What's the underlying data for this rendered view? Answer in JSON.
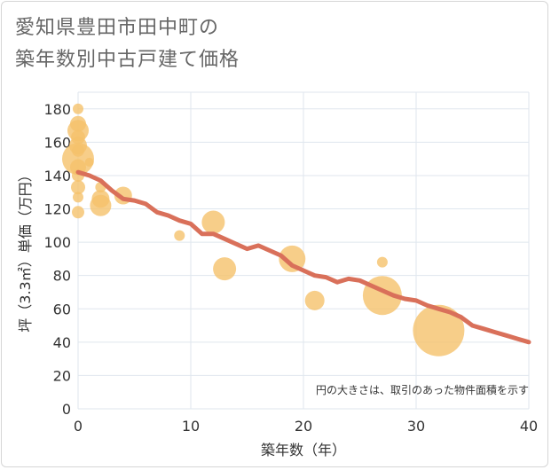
{
  "title": {
    "line1": "愛知県豊田市田中町の",
    "line2": "築年数別中古戸建て価格"
  },
  "chart_data": {
    "type": "scatter",
    "title": "愛知県豊田市田中町の築年数別中古戸建て価格",
    "xlabel": "築年数（年）",
    "ylabel": "坪（3.3㎡）単価（万円）",
    "xlim": [
      0,
      40
    ],
    "ylim": [
      0,
      190
    ],
    "xticks": [
      0,
      10,
      20,
      30,
      40
    ],
    "yticks": [
      0,
      20,
      40,
      60,
      80,
      100,
      120,
      140,
      160,
      180
    ],
    "grid": true,
    "annotation": "円の大きさは、取引のあった物件面積を示す",
    "bubble_color": "#f5c26b",
    "trend_color": "#d9705a",
    "points": [
      {
        "x": 0,
        "y": 180,
        "size": 6
      },
      {
        "x": 0,
        "y": 171,
        "size": 9
      },
      {
        "x": 0,
        "y": 167,
        "size": 12
      },
      {
        "x": 0,
        "y": 163,
        "size": 8
      },
      {
        "x": 0,
        "y": 158,
        "size": 10
      },
      {
        "x": 0,
        "y": 155,
        "size": 7
      },
      {
        "x": 0,
        "y": 150,
        "size": 18
      },
      {
        "x": 0,
        "y": 145,
        "size": 9
      },
      {
        "x": 0,
        "y": 140,
        "size": 7
      },
      {
        "x": 0,
        "y": 133,
        "size": 8
      },
      {
        "x": 0,
        "y": 127,
        "size": 6
      },
      {
        "x": 0,
        "y": 118,
        "size": 7
      },
      {
        "x": 1,
        "y": 148,
        "size": 5
      },
      {
        "x": 2,
        "y": 133,
        "size": 6
      },
      {
        "x": 2,
        "y": 126,
        "size": 10
      },
      {
        "x": 2,
        "y": 122,
        "size": 12
      },
      {
        "x": 4,
        "y": 128,
        "size": 10
      },
      {
        "x": 9,
        "y": 104,
        "size": 6
      },
      {
        "x": 12,
        "y": 112,
        "size": 13
      },
      {
        "x": 13,
        "y": 84,
        "size": 13
      },
      {
        "x": 19,
        "y": 90,
        "size": 15
      },
      {
        "x": 21,
        "y": 65,
        "size": 11
      },
      {
        "x": 27,
        "y": 88,
        "size": 6
      },
      {
        "x": 27,
        "y": 68,
        "size": 22
      },
      {
        "x": 32,
        "y": 47,
        "size": 29
      }
    ],
    "trend": {
      "x": [
        0,
        1,
        2,
        3,
        4,
        5,
        6,
        7,
        8,
        9,
        10,
        11,
        12,
        13,
        14,
        15,
        16,
        17,
        18,
        19,
        20,
        21,
        22,
        23,
        24,
        25,
        26,
        27,
        28,
        29,
        30,
        31,
        32,
        33,
        34,
        35,
        36,
        37,
        38,
        39,
        40
      ],
      "y": [
        142,
        140,
        137,
        131,
        126,
        125,
        123,
        118,
        116,
        113,
        111,
        105,
        105,
        102,
        99,
        96,
        98,
        95,
        92,
        86,
        83,
        80,
        79,
        76,
        78,
        77,
        74,
        71,
        68,
        66,
        65,
        62,
        60,
        58,
        55,
        50,
        48,
        46,
        44,
        42,
        40
      ]
    }
  }
}
